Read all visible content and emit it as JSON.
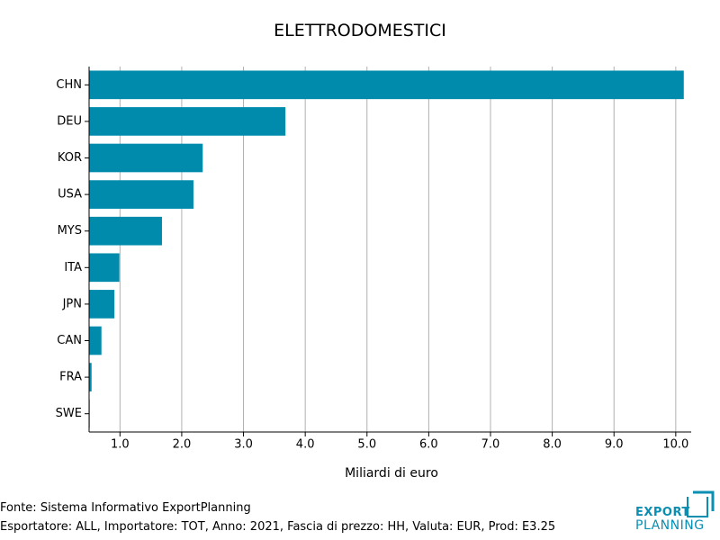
{
  "chart_data": {
    "type": "bar",
    "orientation": "horizontal",
    "title": "ELETTRODOMESTICI",
    "xlabel": "Miliardi di euro",
    "ylabel": "",
    "categories": [
      "CHN",
      "DEU",
      "KOR",
      "USA",
      "MYS",
      "ITA",
      "JPN",
      "CAN",
      "FRA",
      "SWE"
    ],
    "values": [
      10.13,
      3.68,
      2.34,
      2.19,
      1.68,
      0.99,
      0.91,
      0.7,
      0.54,
      0.51
    ],
    "xlim": [
      0.5,
      10.25
    ],
    "xticks": [
      1.0,
      2.0,
      3.0,
      4.0,
      5.0,
      6.0,
      7.0,
      8.0,
      9.0,
      10.0
    ],
    "xtick_labels": [
      "1.0",
      "2.0",
      "3.0",
      "4.0",
      "5.0",
      "6.0",
      "7.0",
      "8.0",
      "9.0",
      "10.0"
    ],
    "grid": "vertical",
    "bar_color": "#008bad"
  },
  "footer": {
    "source": "Fonte: Sistema Informativo ExportPlanning",
    "details": "Esportatore: ALL, Importatore: TOT, Anno: 2021, Fascia di prezzo: HH, Valuta: EUR, Prod: E3.25"
  },
  "logo": {
    "line1": "EXPORT",
    "line2": "PLANNING",
    "color": "#0a8fb3"
  }
}
